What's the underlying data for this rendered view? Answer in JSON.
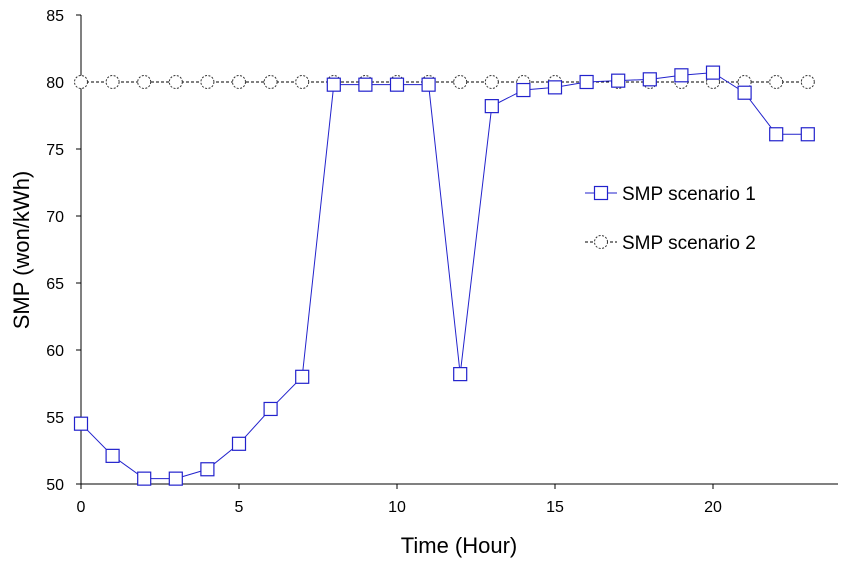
{
  "chart_data": {
    "type": "line",
    "xlabel": "Time (Hour)",
    "ylabel": "SMP (won/kWh)",
    "xlim": [
      0,
      23
    ],
    "ylim": [
      50,
      85
    ],
    "xticks": [
      0,
      5,
      10,
      15,
      20
    ],
    "yticks": [
      50,
      55,
      60,
      65,
      70,
      75,
      80,
      85
    ],
    "grid": false,
    "legend": "center-right",
    "x": [
      0,
      1,
      2,
      3,
      4,
      5,
      6,
      7,
      8,
      9,
      10,
      11,
      12,
      13,
      14,
      15,
      16,
      17,
      18,
      19,
      20,
      21,
      22,
      23
    ],
    "series": [
      {
        "name": "SMP scenario 1",
        "marker": "square",
        "line": "solid",
        "color": "#2222cc",
        "values": [
          54.5,
          52.1,
          50.4,
          50.4,
          51.1,
          53.0,
          55.6,
          58.0,
          79.8,
          79.8,
          79.8,
          79.8,
          58.2,
          78.2,
          79.4,
          79.6,
          80.0,
          80.1,
          80.2,
          80.5,
          80.7,
          79.2,
          76.1,
          76.1
        ]
      },
      {
        "name": "SMP scenario 2",
        "marker": "circle",
        "line": "dashed",
        "color": "#000000",
        "values": [
          80,
          80,
          80,
          80,
          80,
          80,
          80,
          80,
          80,
          80,
          80,
          80,
          80,
          80,
          80,
          80,
          80,
          80,
          80,
          80,
          80,
          80,
          80,
          80
        ]
      }
    ]
  }
}
